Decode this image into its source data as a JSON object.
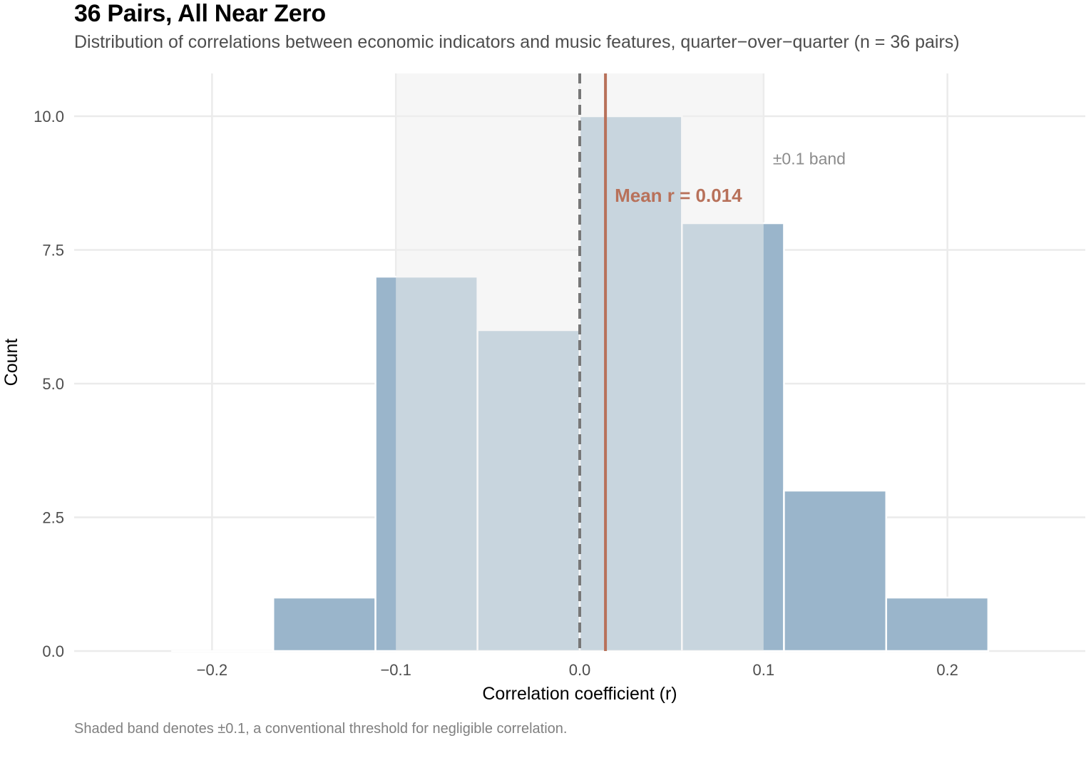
{
  "chart_data": {
    "type": "bar",
    "title": "36 Pairs, All Near Zero",
    "subtitle": "Distribution of correlations between economic indicators and music features, quarter−over−quarter (n = 36 pairs)",
    "caption": "Shaded band denotes ±0.1, a conventional threshold for negligible correlation.",
    "xlabel": "Correlation coefficient (r)",
    "ylabel": "Count",
    "xlim": [
      -0.275,
      0.275
    ],
    "ylim": [
      0,
      10.8
    ],
    "x_ticks": [
      -0.2,
      -0.1,
      0.0,
      0.1,
      0.2
    ],
    "x_tick_labels": [
      "−0.2",
      "−0.1",
      "0.0",
      "0.1",
      "0.2"
    ],
    "y_ticks": [
      0,
      2.5,
      5,
      7.5,
      10
    ],
    "y_tick_labels": [
      "0.0",
      "2.5",
      "5.0",
      "7.5",
      "10.0"
    ],
    "bins": [
      {
        "x0": -0.2222,
        "x1": -0.1667,
        "count": 0
      },
      {
        "x0": -0.1667,
        "x1": -0.1111,
        "count": 1
      },
      {
        "x0": -0.1111,
        "x1": -0.0556,
        "count": 7
      },
      {
        "x0": -0.0556,
        "x1": 0.0,
        "count": 6
      },
      {
        "x0": 0.0,
        "x1": 0.0556,
        "count": 10
      },
      {
        "x0": 0.0556,
        "x1": 0.1111,
        "count": 8
      },
      {
        "x0": 0.1111,
        "x1": 0.1667,
        "count": 3
      },
      {
        "x0": 0.1667,
        "x1": 0.2222,
        "count": 1
      }
    ],
    "band": {
      "low": -0.1,
      "high": 0.1,
      "label": "±0.1 band"
    },
    "zero_line": 0.0,
    "mean": {
      "value": 0.014,
      "label": "Mean r = 0.014"
    },
    "colors": {
      "bar": "#9ab5cb",
      "bar_edge": "#ffffff",
      "band": "#efefef",
      "mean_line": "#b8715a",
      "zero_line": "#777777",
      "grid": "#ebebeb",
      "band_label": "#8c8c8c"
    }
  }
}
